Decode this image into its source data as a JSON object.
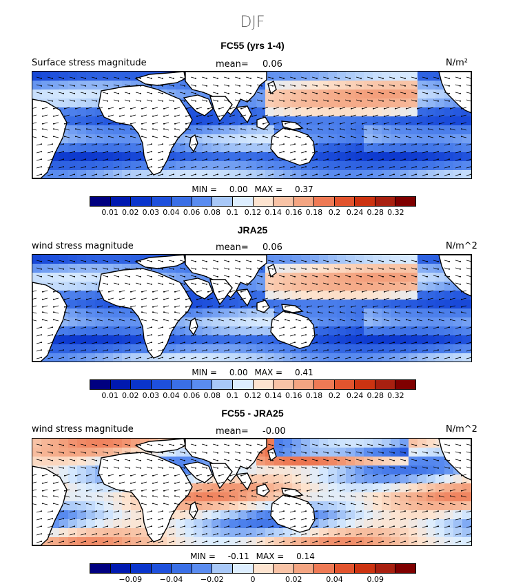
{
  "season": "DJF",
  "panels": [
    {
      "title": "FC55 (yrs 1-4)",
      "left_label": "Surface stress magnitude",
      "mean_label": "mean=",
      "mean_value": "0.06",
      "units": "N/m²",
      "min_label": "MIN =",
      "min_value": "0.00",
      "max_label": "MAX =",
      "max_value": "0.37",
      "colorbar": [
        "#000080",
        "#0019b0",
        "#0a35cc",
        "#1e50dc",
        "#3a6fe6",
        "#5a8cf0",
        "#a8c8f8",
        "#ddeeff",
        "#fde4d0",
        "#f8c3a6",
        "#f4a582",
        "#ee7a55",
        "#e2542e",
        "#cc3311",
        "#a82010",
        "#7f0000"
      ],
      "ticks": [
        "0.01",
        "0.02",
        "0.03",
        "0.04",
        "0.06",
        "0.08",
        "0.1",
        "0.12",
        "0.14",
        "0.16",
        "0.18",
        "0.2",
        "0.24",
        "0.28",
        "0.32"
      ]
    },
    {
      "title": "JRA25",
      "left_label": "wind stress magnitude",
      "mean_label": "mean=",
      "mean_value": "0.06",
      "units": "N/m^2",
      "min_label": "MIN =",
      "min_value": "0.00",
      "max_label": "MAX =",
      "max_value": "0.41",
      "colorbar": [
        "#000080",
        "#0019b0",
        "#0a35cc",
        "#1e50dc",
        "#3a6fe6",
        "#5a8cf0",
        "#a8c8f8",
        "#ddeeff",
        "#fde4d0",
        "#f8c3a6",
        "#f4a582",
        "#ee7a55",
        "#e2542e",
        "#cc3311",
        "#a82010",
        "#7f0000"
      ],
      "ticks": [
        "0.01",
        "0.02",
        "0.03",
        "0.04",
        "0.06",
        "0.08",
        "0.1",
        "0.12",
        "0.14",
        "0.16",
        "0.18",
        "0.2",
        "0.24",
        "0.28",
        "0.32"
      ]
    },
    {
      "title": "FC55 - JRA25",
      "left_label": "wind stress magnitude",
      "mean_label": "mean=",
      "mean_value": "-0.00",
      "units": "N/m^2",
      "min_label": "MIN =",
      "min_value": "-0.11",
      "max_label": "MAX =",
      "max_value": "0.14",
      "colorbar": [
        "#000080",
        "#0019b0",
        "#0a35cc",
        "#1e50dc",
        "#3a6fe6",
        "#5a8cf0",
        "#a8c8f8",
        "#ddeeff",
        "#fde4d0",
        "#f8c3a6",
        "#f4a582",
        "#ee7a55",
        "#e2542e",
        "#cc3311",
        "#a82010",
        "#7f0000"
      ],
      "ticks": [
        "",
        "-0.09",
        "",
        "-0.04",
        "",
        "-0.02",
        "",
        "0",
        "",
        "0.02",
        "",
        "0.04",
        "",
        "0.09",
        ""
      ]
    }
  ]
}
